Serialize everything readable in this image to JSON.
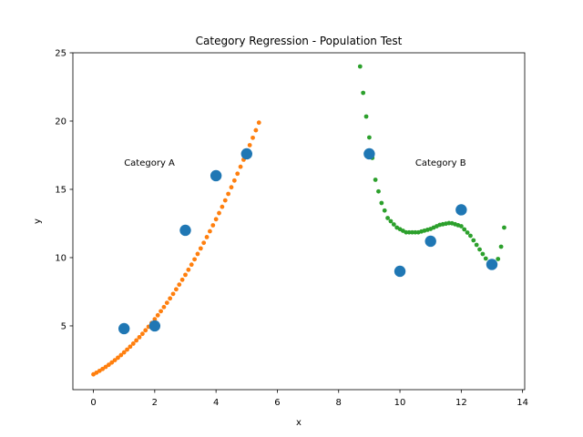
{
  "chart_data": {
    "type": "scatter",
    "title": "Category Regression - Population Test",
    "xlabel": "x",
    "ylabel": "y",
    "xlim": [
      -0.67,
      14.07
    ],
    "ylim": [
      0.33,
      25.0
    ],
    "xticks": [
      0,
      2,
      4,
      6,
      8,
      10,
      12,
      14
    ],
    "yticks": [
      5,
      10,
      15,
      20,
      25
    ],
    "grid": false,
    "colors": {
      "observed": "#1f77b4",
      "fitA": "#ff7f0e",
      "fitB": "#2ca02c"
    },
    "annotations": [
      {
        "text": "Category A",
        "x": 1.0,
        "y": 17.0
      },
      {
        "text": "Category B",
        "x": 10.5,
        "y": 17.0
      }
    ],
    "series": [
      {
        "role": "observed",
        "marker": "large-dot",
        "points": [
          [
            1,
            4.8
          ],
          [
            2,
            5.0
          ],
          [
            3,
            12.0
          ],
          [
            4,
            16.0
          ],
          [
            5,
            17.6
          ],
          [
            9,
            17.6
          ],
          [
            10,
            9.0
          ],
          [
            11,
            11.2
          ],
          [
            12,
            13.5
          ],
          [
            13,
            9.5
          ]
        ]
      },
      {
        "role": "fitA",
        "marker": "small-dot",
        "x_range": [
          0.0,
          5.4
        ],
        "n_points": 55,
        "y_of_x": {
          "type": "polynomial",
          "coeffs": [
            1.45,
            1.2,
            0.41
          ]
        }
      },
      {
        "role": "fitB",
        "marker": "small-dot",
        "x_range": [
          8.7,
          13.4
        ],
        "n_points": 48,
        "y_of_x": {
          "type": "knots",
          "knots": [
            [
              8.7,
              24.0
            ],
            [
              8.85,
              21.1
            ],
            [
              9.0,
              18.8
            ],
            [
              9.1,
              17.3
            ],
            [
              9.2,
              15.7
            ],
            [
              9.4,
              14.0
            ],
            [
              9.6,
              12.9
            ],
            [
              9.9,
              12.2
            ],
            [
              10.2,
              11.85
            ],
            [
              10.6,
              11.85
            ],
            [
              11.0,
              12.1
            ],
            [
              11.3,
              12.4
            ],
            [
              11.65,
              12.55
            ],
            [
              12.0,
              12.3
            ],
            [
              12.3,
              11.6
            ],
            [
              12.6,
              10.6
            ],
            [
              12.9,
              9.6
            ],
            [
              13.1,
              9.4
            ],
            [
              13.2,
              9.9
            ],
            [
              13.3,
              10.8
            ],
            [
              13.4,
              12.2
            ]
          ]
        }
      }
    ]
  }
}
